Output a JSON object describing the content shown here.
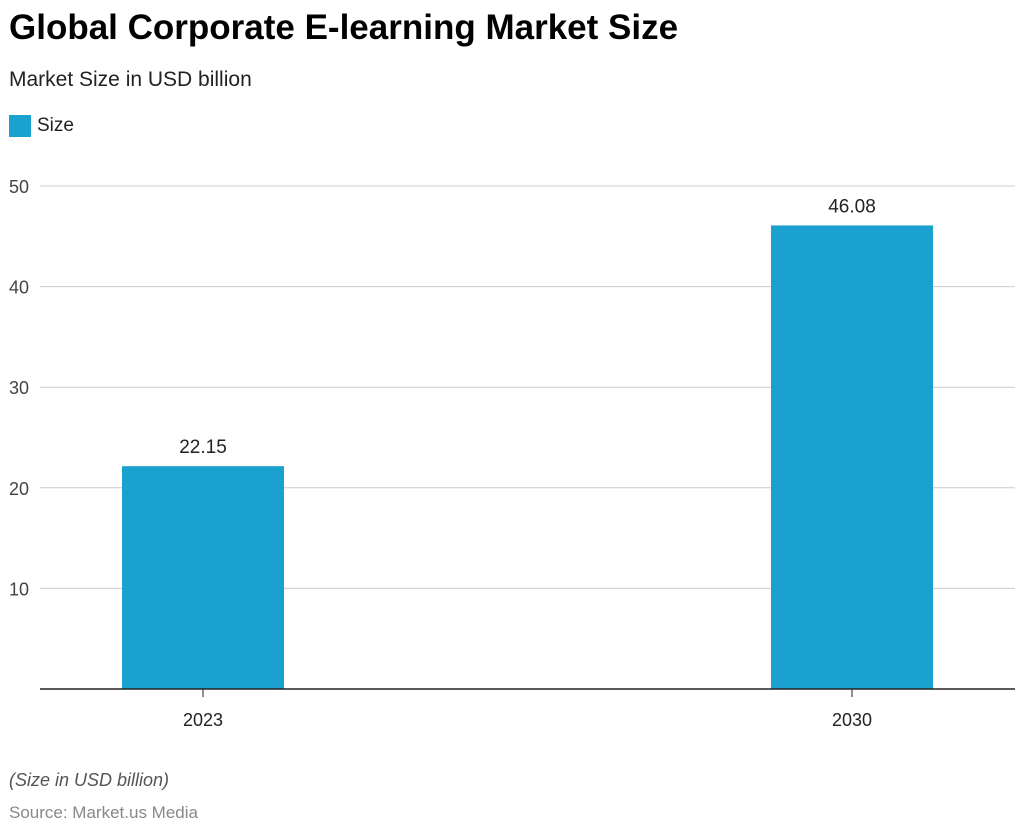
{
  "title": "Global Corporate E-learning Market Size",
  "subtitle": "Market Size in USD billion",
  "note": "(Size in USD billion)",
  "source": "Source: Market.us Media",
  "chart_data": {
    "type": "bar",
    "categories": [
      "2023",
      "2030"
    ],
    "series": [
      {
        "name": "Size",
        "values": [
          22.15,
          46.08
        ],
        "color": "#1ba1cf"
      }
    ],
    "ylim": [
      0,
      50
    ],
    "yticks": [
      10,
      20,
      30,
      40,
      50
    ],
    "grid": true,
    "legend": "top-left",
    "value_labels": [
      "22.15",
      "46.08"
    ]
  }
}
